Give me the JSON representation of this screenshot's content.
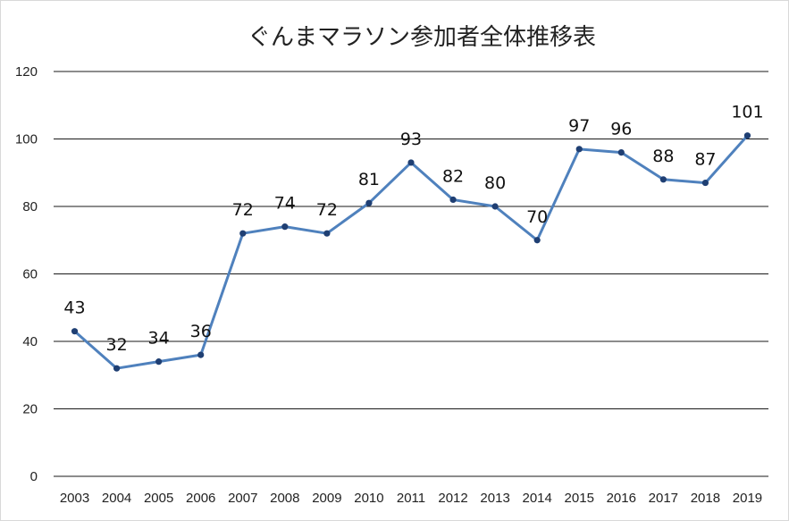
{
  "chart_data": {
    "type": "line",
    "title": "ぐんまマラソン参加者全体推移表",
    "xlabel": "",
    "ylabel": "",
    "ylim": [
      0,
      120
    ],
    "yticks": [
      0,
      20,
      40,
      60,
      80,
      100,
      120
    ],
    "grid": true,
    "legend": "none",
    "color": "#4f81bd",
    "marker_color": "#1f3f73",
    "categories": [
      "2003",
      "2004",
      "2005",
      "2006",
      "2007",
      "2008",
      "2009",
      "2010",
      "2011",
      "2012",
      "2013",
      "2014",
      "2015",
      "2016",
      "2017",
      "2018",
      "2019"
    ],
    "values": [
      43,
      32,
      34,
      36,
      72,
      74,
      72,
      81,
      93,
      82,
      80,
      70,
      97,
      96,
      88,
      87,
      101
    ]
  }
}
